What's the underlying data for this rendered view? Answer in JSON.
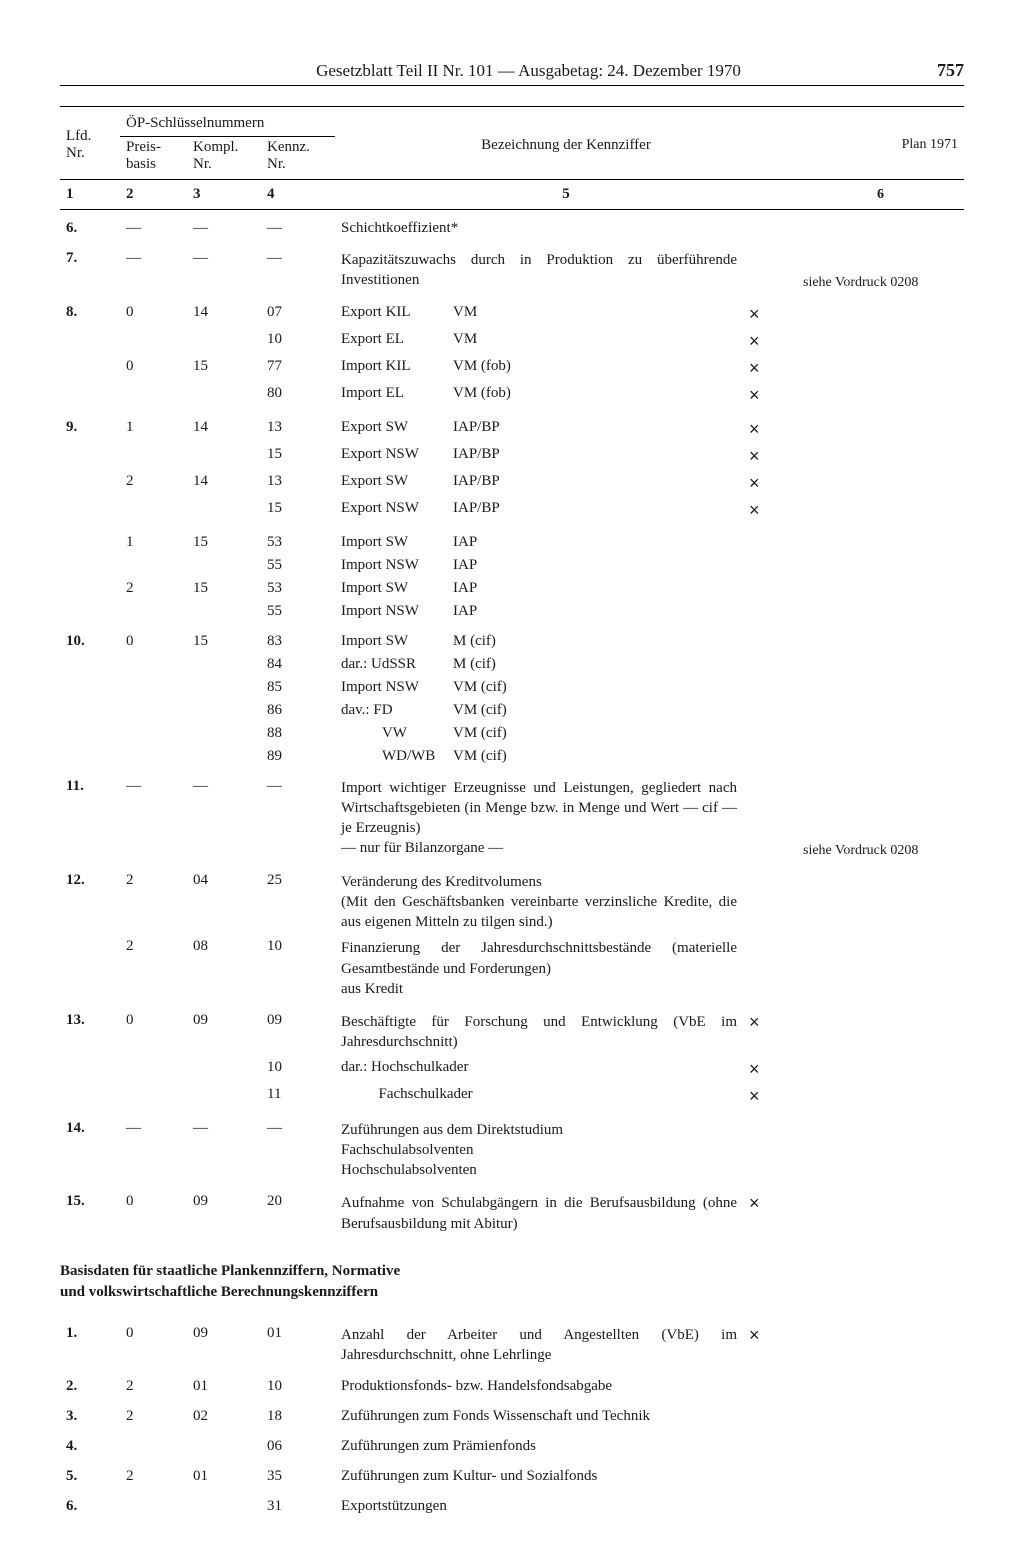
{
  "header": {
    "title": "Gesetzblatt Teil II Nr. 101 — Ausgabetag: 24. Dezember 1970",
    "page_number": "757"
  },
  "columns": {
    "lfd": "Lfd.\nNr.",
    "group_label": "ÖP-Schlüsselnummern",
    "preis": "Preis-\nbasis",
    "kompl": "Kompl.\nNr.",
    "kennz": "Kennz.\nNr.",
    "bezeichnung": "Bezeichnung der Kennziffer",
    "plan": "Plan 1971",
    "nums": {
      "c1": "1",
      "c2": "2",
      "c3": "3",
      "c4": "4",
      "c5": "5",
      "c6": "6"
    }
  },
  "rows": [
    {
      "lfd": "6.",
      "c2": "—",
      "c3": "—",
      "c4": "—",
      "desc": "Schichtkoeffizient*",
      "x": "",
      "note": "",
      "first": true
    },
    {
      "lfd": "7.",
      "c2": "—",
      "c3": "—",
      "c4": "—",
      "desc": "Kapazitätszuwachs durch in Produktion zu überführende Investitionen",
      "x": "",
      "note": "siehe Vordruck 0208",
      "first": true,
      "multiline": true
    },
    {
      "lfd": "8.",
      "c2": "0",
      "c3": "14",
      "c4": "07",
      "desc_parts": [
        "Export KIL",
        "VM"
      ],
      "x": "×",
      "first": true
    },
    {
      "lfd": "",
      "c2": "",
      "c3": "",
      "c4": "10",
      "desc_parts": [
        "Export EL",
        "VM"
      ],
      "x": "×"
    },
    {
      "lfd": "",
      "c2": "0",
      "c3": "15",
      "c4": "77",
      "desc_parts": [
        "Import KIL",
        "VM (fob)"
      ],
      "x": "×"
    },
    {
      "lfd": "",
      "c2": "",
      "c3": "",
      "c4": "80",
      "desc_parts": [
        "Import EL",
        "VM (fob)"
      ],
      "x": "×"
    },
    {
      "lfd": "9.",
      "c2": "1",
      "c3": "14",
      "c4": "13",
      "desc_parts": [
        "Export SW",
        "IAP/BP"
      ],
      "x": "×",
      "first": true
    },
    {
      "lfd": "",
      "c2": "",
      "c3": "",
      "c4": "15",
      "desc_parts": [
        "Export NSW",
        "IAP/BP"
      ],
      "x": "×"
    },
    {
      "lfd": "",
      "c2": "2",
      "c3": "14",
      "c4": "13",
      "desc_parts": [
        "Export SW",
        "IAP/BP"
      ],
      "x": "×"
    },
    {
      "lfd": "",
      "c2": "",
      "c3": "",
      "c4": "15",
      "desc_parts": [
        "Export NSW",
        "IAP/BP"
      ],
      "x": "×"
    },
    {
      "lfd": "",
      "c2": "1",
      "c3": "15",
      "c4": "53",
      "desc_parts": [
        "Import SW",
        "IAP"
      ],
      "x": "",
      "first": true
    },
    {
      "lfd": "",
      "c2": "",
      "c3": "",
      "c4": "55",
      "desc_parts": [
        "Import NSW",
        "IAP"
      ],
      "x": ""
    },
    {
      "lfd": "",
      "c2": "2",
      "c3": "15",
      "c4": "53",
      "desc_parts": [
        "Import SW",
        "IAP"
      ],
      "x": ""
    },
    {
      "lfd": "",
      "c2": "",
      "c3": "",
      "c4": "55",
      "desc_parts": [
        "Import NSW",
        "IAP"
      ],
      "x": ""
    },
    {
      "lfd": "10.",
      "c2": "0",
      "c3": "15",
      "c4": "83",
      "desc_parts": [
        "Import SW",
        "M   (cif)"
      ],
      "x": "",
      "first": true
    },
    {
      "lfd": "",
      "c2": "",
      "c3": "",
      "c4": "84",
      "desc_parts": [
        "dar.: UdSSR",
        "M   (cif)"
      ],
      "x": ""
    },
    {
      "lfd": "",
      "c2": "",
      "c3": "",
      "c4": "85",
      "desc_parts": [
        "Import NSW",
        "VM (cif)"
      ],
      "x": ""
    },
    {
      "lfd": "",
      "c2": "",
      "c3": "",
      "c4": "86",
      "desc_parts": [
        "dav.: FD",
        "VM (cif)"
      ],
      "x": ""
    },
    {
      "lfd": "",
      "c2": "",
      "c3": "",
      "c4": "88",
      "desc_parts": [
        "           VW",
        "VM (cif)"
      ],
      "x": ""
    },
    {
      "lfd": "",
      "c2": "",
      "c3": "",
      "c4": "89",
      "desc_parts": [
        "           WD/WB",
        "VM (cif)"
      ],
      "x": ""
    },
    {
      "lfd": "11.",
      "c2": "—",
      "c3": "—",
      "c4": "—",
      "desc": "Import wichtiger Erzeugnisse und Leistungen, gegliedert nach Wirtschaftsgebieten (in Menge bzw. in Menge und Wert — cif — je Erzeugnis)\n— nur für Bilanzorgane —",
      "x": "",
      "note": "siehe Vordruck 0208",
      "first": true,
      "multiline": true
    },
    {
      "lfd": "12.",
      "c2": "2",
      "c3": "04",
      "c4": "25",
      "desc": "Veränderung des Kreditvolumens\n(Mit den Geschäftsbanken vereinbarte verzinsliche Kredite, die aus eigenen Mitteln zu tilgen sind.)",
      "x": "",
      "first": true,
      "multiline": true
    },
    {
      "lfd": "",
      "c2": "2",
      "c3": "08",
      "c4": "10",
      "desc": "Finanzierung der Jahresdurchschnittsbestände (materielle Gesamtbestände und Forderungen)\naus Kredit",
      "x": "",
      "multiline": true
    },
    {
      "lfd": "13.",
      "c2": "0",
      "c3": "09",
      "c4": "09",
      "desc": "Beschäftigte für Forschung und Entwicklung (VbE im Jahresdurchschnitt)",
      "x": "×",
      "first": true,
      "multiline": true
    },
    {
      "lfd": "",
      "c2": "",
      "c3": "",
      "c4": "10",
      "desc": "dar.: Hochschulkader",
      "x": "×"
    },
    {
      "lfd": "",
      "c2": "",
      "c3": "",
      "c4": "11",
      "desc": "          Fachschulkader",
      "x": "×"
    },
    {
      "lfd": "14.",
      "c2": "—",
      "c3": "—",
      "c4": "—",
      "desc": "Zuführungen aus dem Direktstudium\nFachschulabsolventen\nHochschulabsolventen",
      "x": "",
      "first": true,
      "multiline": true
    },
    {
      "lfd": "15.",
      "c2": "0",
      "c3": "09",
      "c4": "20",
      "desc": "Aufnahme von Schulabgängern in die Berufsausbildung (ohne Berufsausbildung mit Abitur)",
      "x": "×",
      "first": true,
      "multiline": true
    }
  ],
  "section2": {
    "heading": "Basisdaten für staatliche Plankennziffern, Normative\nund volkswirtschaftliche Berechnungskennziffern",
    "rows": [
      {
        "lfd": "1.",
        "c2": "0",
        "c3": "09",
        "c4": "01",
        "desc": "Anzahl der Arbeiter und Angestellten (VbE) im Jahresdurchschnitt, ohne Lehrlinge",
        "x": "×",
        "first": true,
        "multiline": true
      },
      {
        "lfd": "2.",
        "c2": "2",
        "c3": "01",
        "c4": "10",
        "desc": "Produktionsfonds- bzw. Handelsfondsabgabe",
        "x": "",
        "first": true
      },
      {
        "lfd": "3.",
        "c2": "2",
        "c3": "02",
        "c4": "18",
        "desc": "Zuführungen zum Fonds Wissenschaft und Technik",
        "x": "",
        "first": true
      },
      {
        "lfd": "4.",
        "c2": "",
        "c3": "",
        "c4": "06",
        "desc": "Zuführungen zum Prämienfonds",
        "x": "",
        "first": true
      },
      {
        "lfd": "5.",
        "c2": "2",
        "c3": "01",
        "c4": "35",
        "desc": "Zuführungen zum Kultur- und Sozialfonds",
        "x": "",
        "first": true
      },
      {
        "lfd": "6.",
        "c2": "",
        "c3": "",
        "c4": "31",
        "desc": "Exportstützungen",
        "x": "",
        "first": true
      }
    ]
  }
}
